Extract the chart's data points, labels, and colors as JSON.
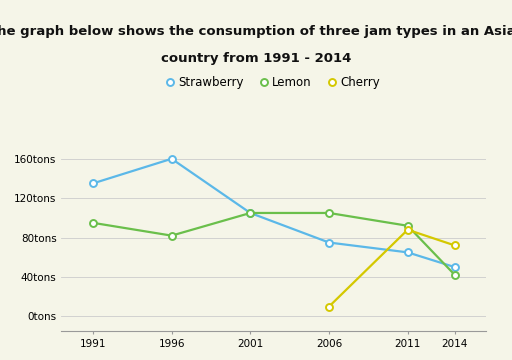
{
  "title_line1": "The graph below shows the consumption of three jam types in an Asian",
  "title_line2": "country from 1991 - 2014",
  "title_fontsize": 9.5,
  "title_fontweight": "bold",
  "years": [
    1991,
    1996,
    2001,
    2006,
    2011,
    2014
  ],
  "strawberry": [
    135,
    160,
    105,
    75,
    65,
    50
  ],
  "lemon": [
    95,
    82,
    105,
    105,
    92,
    42
  ],
  "cherry": [
    null,
    null,
    null,
    10,
    88,
    72
  ],
  "strawberry_color": "#5bb8e8",
  "lemon_color": "#6abf4b",
  "cherry_color": "#d4c800",
  "background_color": "#f5f5e8",
  "grid_color": "#cccccc",
  "yticks": [
    0,
    40,
    80,
    120,
    160
  ],
  "ytick_labels": [
    "0tons",
    "40tons",
    "80tons",
    "120tons",
    "160tons"
  ],
  "ylim": [
    -15,
    175
  ],
  "xlim": [
    1989,
    2016
  ],
  "legend_labels": [
    "Strawberry",
    "Lemon",
    "Cherry"
  ],
  "marker_size": 5,
  "linewidth": 1.6
}
